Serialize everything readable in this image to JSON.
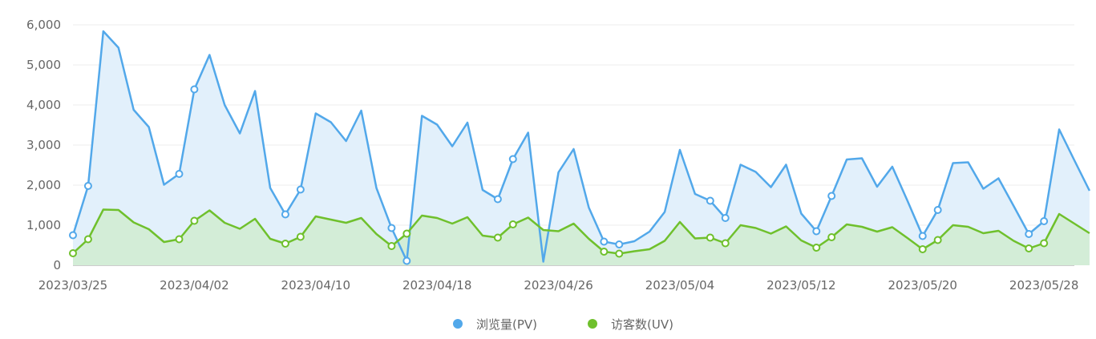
{
  "chart_data": {
    "type": "area",
    "x_start": "2023/03/25",
    "x_end": "2023/05/30",
    "xlabel": "",
    "ylabel": "",
    "ylim": [
      0,
      6000
    ],
    "y_ticks": [
      {
        "value": 0,
        "label": "0"
      },
      {
        "value": 1000,
        "label": "1,000"
      },
      {
        "value": 2000,
        "label": "2,000"
      },
      {
        "value": 3000,
        "label": "3,000"
      },
      {
        "value": 4000,
        "label": "4,000"
      },
      {
        "value": 5000,
        "label": "5,000"
      },
      {
        "value": 6000,
        "label": "6,000"
      }
    ],
    "x_ticks": [
      {
        "date": "2023/03/25",
        "label": "2023/03/25"
      },
      {
        "date": "2023/04/02",
        "label": "2023/04/02"
      },
      {
        "date": "2023/04/10",
        "label": "2023/04/10"
      },
      {
        "date": "2023/04/18",
        "label": "2023/04/18"
      },
      {
        "date": "2023/04/26",
        "label": "2023/04/26"
      },
      {
        "date": "2023/05/04",
        "label": "2023/05/04"
      },
      {
        "date": "2023/05/12",
        "label": "2023/05/12"
      },
      {
        "date": "2023/05/20",
        "label": "2023/05/20"
      },
      {
        "date": "2023/05/28",
        "label": "2023/05/28"
      }
    ],
    "grid": true,
    "legend_position": "bottom-center",
    "series": [
      {
        "name": "浏览量(PV)",
        "color": "#52a8ea",
        "fill": "#e2f0fb",
        "values": [
          750,
          1980,
          5840,
          5430,
          3880,
          3450,
          2010,
          2280,
          4390,
          5250,
          4000,
          3290,
          4350,
          1930,
          1270,
          1890,
          3790,
          3570,
          3100,
          3860,
          1930,
          930,
          110,
          3730,
          3510,
          2970,
          3560,
          1880,
          1650,
          2650,
          3310,
          90,
          2320,
          2900,
          1440,
          590,
          520,
          600,
          840,
          1330,
          2880,
          1780,
          1610,
          1180,
          2510,
          2330,
          1950,
          2510,
          1290,
          850,
          1730,
          2640,
          2670,
          1960,
          2460,
          1610,
          730,
          1380,
          2550,
          2570,
          1910,
          2170,
          1480,
          780,
          1100,
          3390,
          2620,
          1860
        ],
        "markers": [
          0,
          1,
          7,
          8,
          14,
          15,
          21,
          22,
          28,
          29,
          35,
          36,
          42,
          43,
          49,
          50,
          56,
          57,
          63,
          64
        ]
      },
      {
        "name": "访客数(UV)",
        "color": "#6fc02c",
        "fill": "#d3edd7",
        "values": [
          300,
          650,
          1390,
          1380,
          1070,
          900,
          580,
          650,
          1110,
          1370,
          1060,
          910,
          1160,
          660,
          540,
          710,
          1220,
          1140,
          1060,
          1180,
          780,
          480,
          790,
          1240,
          1180,
          1040,
          1200,
          740,
          690,
          1020,
          1190,
          880,
          850,
          1040,
          660,
          340,
          290,
          350,
          400,
          610,
          1080,
          670,
          690,
          550,
          1000,
          930,
          790,
          970,
          620,
          440,
          700,
          1020,
          960,
          840,
          950,
          680,
          400,
          630,
          1000,
          960,
          800,
          860,
          610,
          420,
          550,
          1280,
          1040,
          800
        ],
        "markers": [
          0,
          1,
          7,
          8,
          14,
          15,
          21,
          22,
          28,
          29,
          35,
          36,
          42,
          43,
          49,
          50,
          56,
          57,
          63,
          64
        ]
      }
    ]
  }
}
